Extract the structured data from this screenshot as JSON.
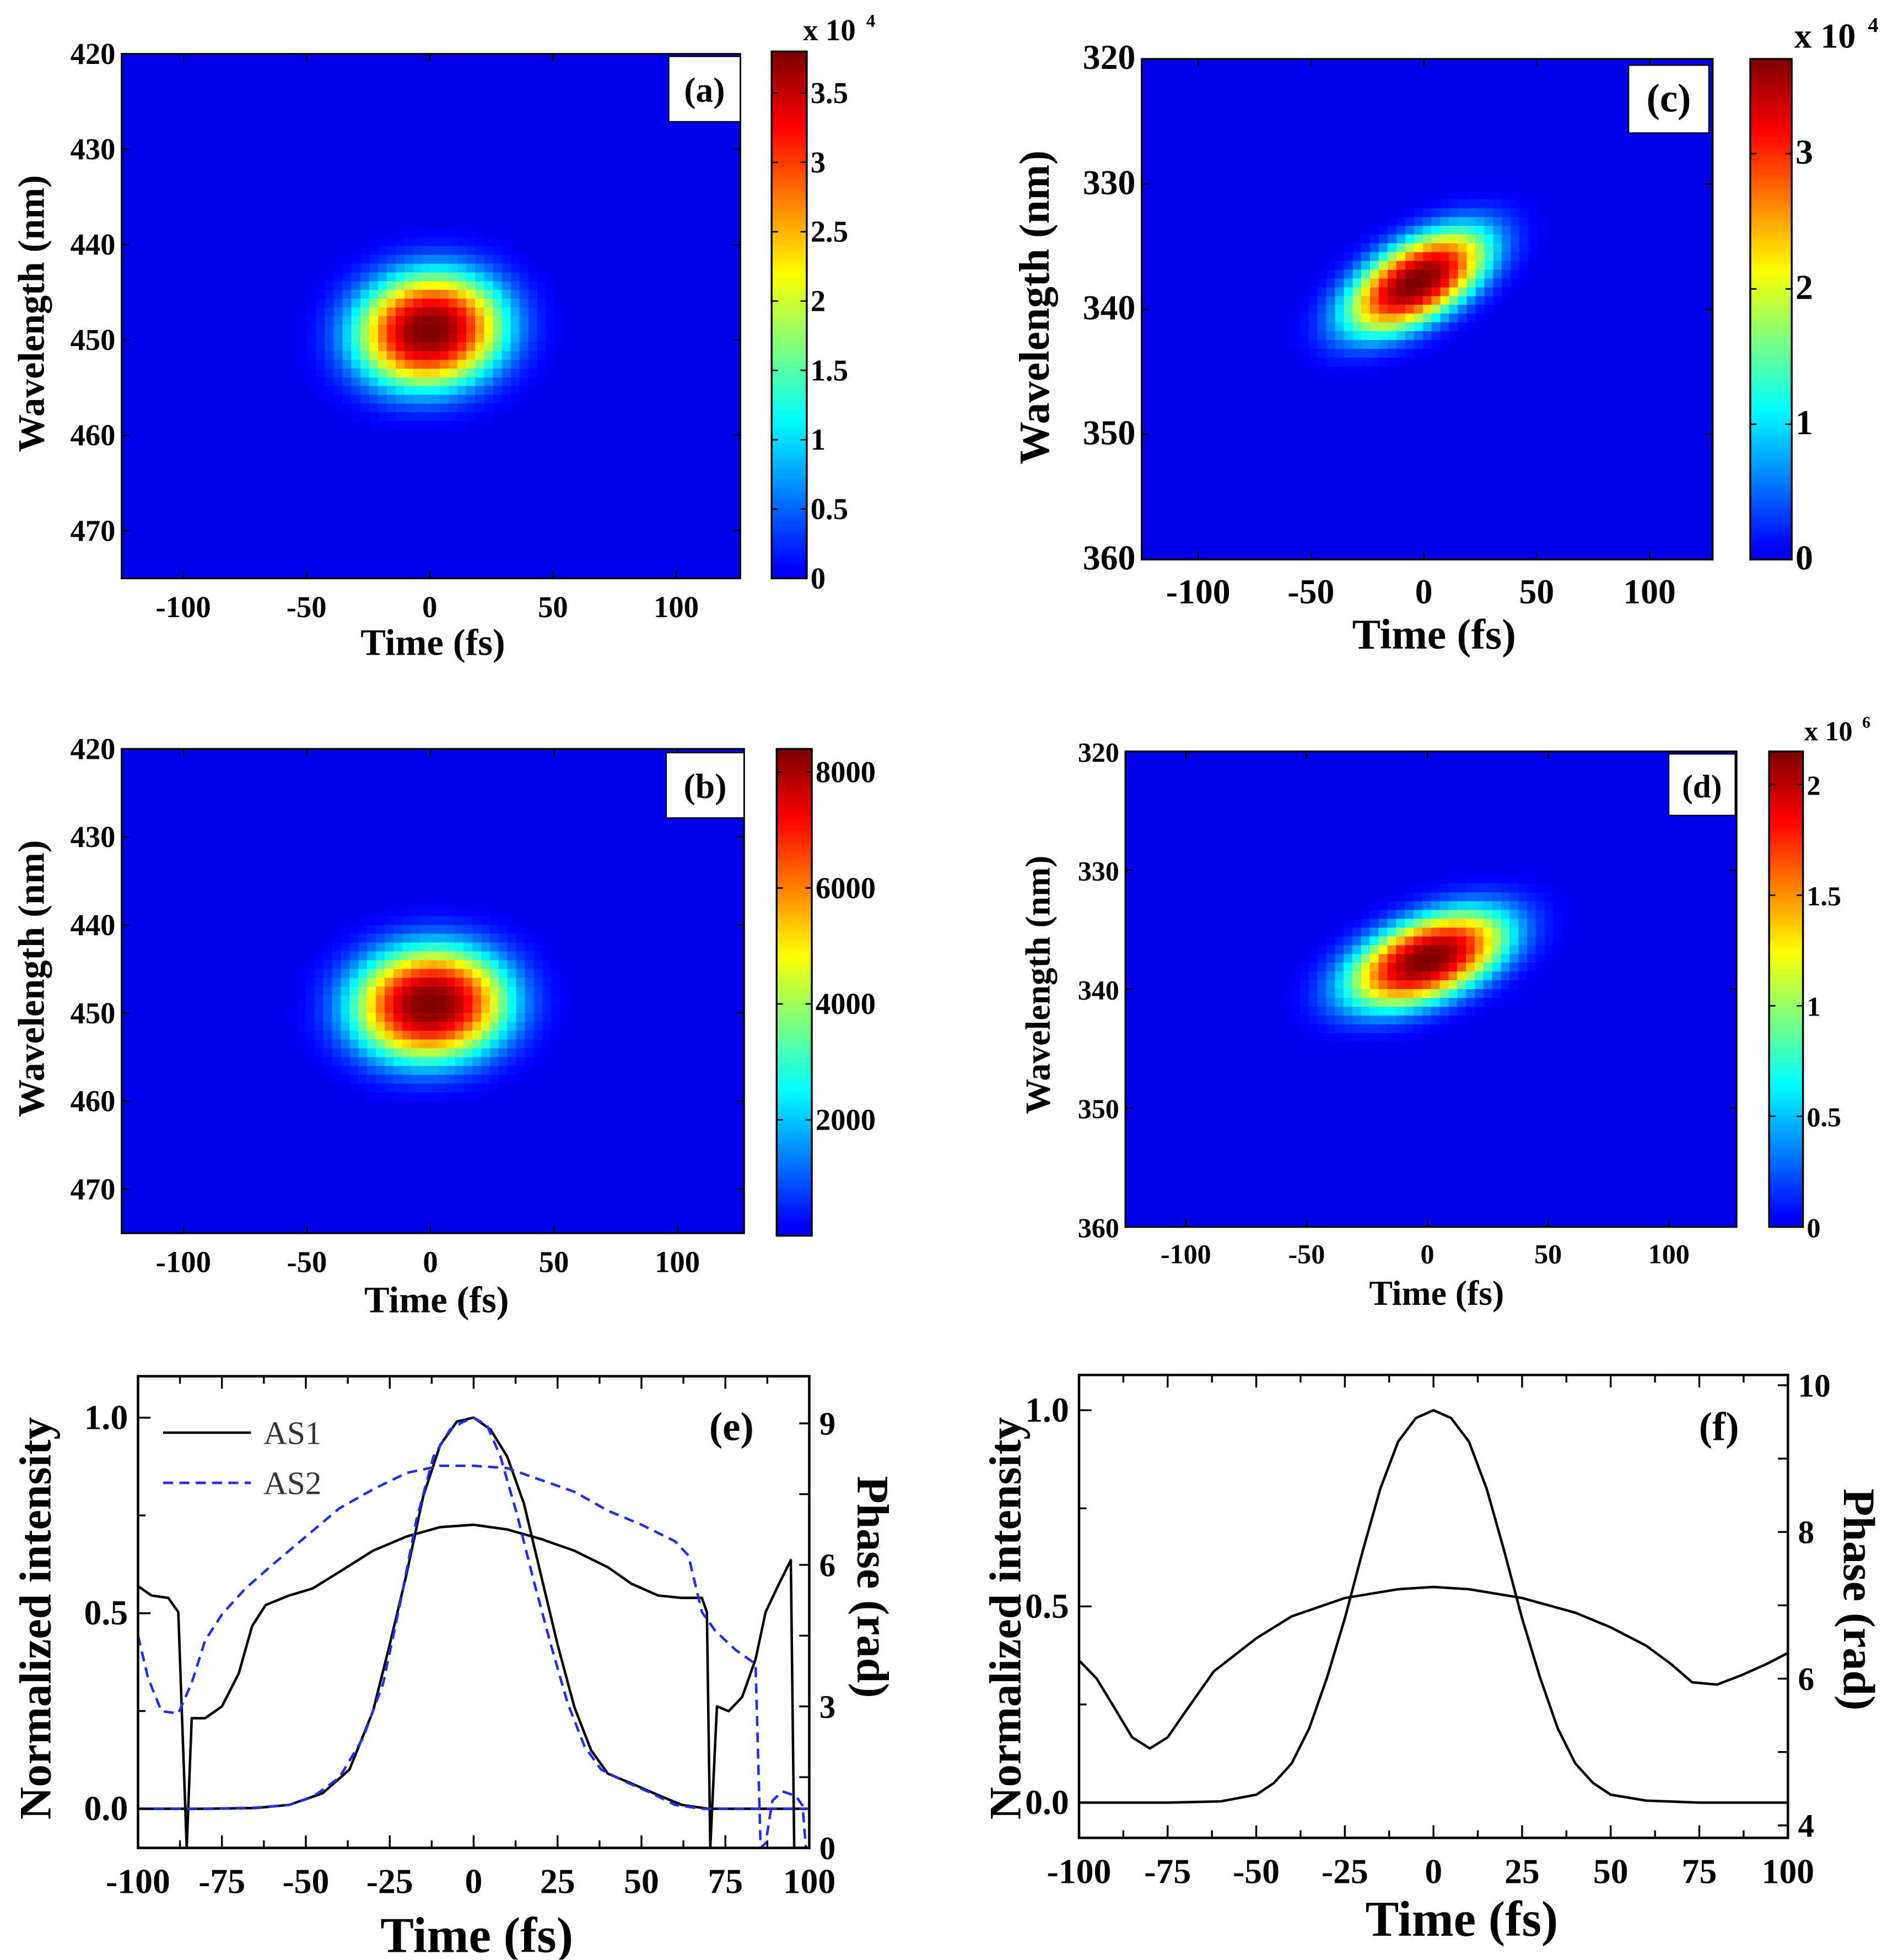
{
  "chart_data": [
    {
      "id": "a",
      "type": "heatmap",
      "panel_label": "(a)",
      "xlabel": "Time (fs)",
      "ylabel": "Wavelength (nm)",
      "xlim": [
        -125,
        126
      ],
      "ylim": [
        420,
        475
      ],
      "xticks": [
        "-100",
        "-50",
        "0",
        "50",
        "100"
      ],
      "xtick_values": [
        -100,
        -50,
        0,
        50,
        100
      ],
      "yticks": [
        "420",
        "430",
        "440",
        "450",
        "460",
        "470"
      ],
      "ytick_values": [
        420,
        430,
        440,
        450,
        460,
        470
      ],
      "peak": {
        "time": 0,
        "wavelength": 449,
        "value": 38000
      },
      "width": {
        "time_sigma": 21,
        "wavelength_sigma": 4.2,
        "chirp_nm_per_fs": -0.015
      },
      "colorbar": {
        "min": 0,
        "max": 3.8,
        "ticks": [
          "0",
          "0.5",
          "1",
          "1.5",
          "2",
          "2.5",
          "3",
          "3.5"
        ],
        "tick_values": [
          0,
          0.5,
          1,
          1.5,
          2,
          2.5,
          3,
          3.5
        ],
        "multiplier": "x 10",
        "exponent": "4"
      }
    },
    {
      "id": "b",
      "type": "heatmap",
      "panel_label": "(b)",
      "xlabel": "Time (fs)",
      "ylabel": "Wavelength (nm)",
      "xlim": [
        -125,
        127
      ],
      "ylim": [
        420,
        475
      ],
      "xticks": [
        "-100",
        "-50",
        "0",
        "50",
        "100"
      ],
      "xtick_values": [
        -100,
        -50,
        0,
        50,
        100
      ],
      "yticks": [
        "420",
        "430",
        "440",
        "450",
        "460",
        "470"
      ],
      "ytick_values": [
        420,
        430,
        440,
        450,
        460,
        470
      ],
      "peak": {
        "time": 0,
        "wavelength": 449,
        "value": 8400
      },
      "width": {
        "time_sigma": 22,
        "wavelength_sigma": 4.5,
        "chirp_nm_per_fs": -0.01
      },
      "colorbar": {
        "min": 0,
        "max": 8400,
        "ticks": [
          "2000",
          "4000",
          "6000",
          "8000"
        ],
        "tick_values": [
          2000,
          4000,
          6000,
          8000
        ]
      }
    },
    {
      "id": "c",
      "type": "heatmap",
      "panel_label": "(c)",
      "xlabel": "Time (fs)",
      "ylabel": "Wavelength (nm)",
      "xlim": [
        -125,
        128
      ],
      "ylim": [
        320,
        360
      ],
      "xticks": [
        "-100",
        "-50",
        "0",
        "50",
        "100"
      ],
      "xtick_values": [
        -100,
        -50,
        0,
        50,
        100
      ],
      "yticks": [
        "320",
        "330",
        "340",
        "350",
        "360"
      ],
      "ytick_values": [
        320,
        330,
        340,
        350,
        360
      ],
      "peak": {
        "time": -3,
        "wavelength": 337.8,
        "value": 37000
      },
      "width": {
        "time_sigma": 22,
        "wavelength_sigma": 2.4,
        "chirp_nm_per_fs": -0.075
      },
      "colorbar": {
        "min": 0,
        "max": 3.7,
        "ticks": [
          "0",
          "1",
          "2",
          "3"
        ],
        "tick_values": [
          0,
          1,
          2,
          3
        ],
        "multiplier": "x 10",
        "exponent": "4"
      }
    },
    {
      "id": "d",
      "type": "heatmap",
      "panel_label": "(d)",
      "xlabel": "Time (fs)",
      "ylabel": "Wavelength (nm)",
      "xlim": [
        -125,
        128
      ],
      "ylim": [
        320,
        360
      ],
      "xticks": [
        "-100",
        "-50",
        "0",
        "50",
        "100"
      ],
      "xtick_values": [
        -100,
        -50,
        0,
        50,
        100
      ],
      "yticks": [
        "320",
        "330",
        "340",
        "350",
        "360"
      ],
      "ytick_values": [
        320,
        330,
        340,
        350,
        360
      ],
      "peak": {
        "time": 0,
        "wavelength": 337.5,
        "value": 2150000
      },
      "width": {
        "time_sigma": 23,
        "wavelength_sigma": 2.5,
        "chirp_nm_per_fs": -0.06
      },
      "colorbar": {
        "min": 0,
        "max": 2.15,
        "ticks": [
          "0",
          "0.5",
          "1",
          "1.5",
          "2"
        ],
        "tick_values": [
          0,
          0.5,
          1,
          1.5,
          2
        ],
        "multiplier": "x 10",
        "exponent": "6"
      }
    },
    {
      "id": "e",
      "type": "line",
      "panel_label": "(e)",
      "xlabel": "Time (fs)",
      "ylabel": "Normalized intensity",
      "y2label": "Phase (rad)",
      "xlim": [
        -100,
        100
      ],
      "ylim": [
        -0.1,
        1.106
      ],
      "y2lim": [
        0,
        10
      ],
      "xticks": [
        "-100",
        "-75",
        "-50",
        "-25",
        "0",
        "25",
        "50",
        "75",
        "100"
      ],
      "xtick_values": [
        -100,
        -75,
        -50,
        -25,
        0,
        25,
        50,
        75,
        100
      ],
      "yticks": [
        "0.0",
        "0.5",
        "1.0"
      ],
      "ytick_values": [
        0,
        0.5,
        1.0
      ],
      "y2ticks": [
        "0",
        "3",
        "6",
        "9"
      ],
      "y2tick_values": [
        0,
        3,
        6,
        9
      ],
      "legend": {
        "placement": "top-left",
        "entries": [
          "AS1",
          "AS2"
        ]
      },
      "series": [
        {
          "name": "AS1",
          "quantity": "intensity",
          "axis": "left",
          "color": "#000000",
          "dash": "solid",
          "points": [
            [
              -100,
              0
            ],
            [
              -80,
              0
            ],
            [
              -65,
              0.002
            ],
            [
              -55,
              0.01
            ],
            [
              -45,
              0.04
            ],
            [
              -37,
              0.1
            ],
            [
              -30,
              0.25
            ],
            [
              -25,
              0.42
            ],
            [
              -20,
              0.6
            ],
            [
              -15,
              0.8
            ],
            [
              -10,
              0.93
            ],
            [
              -5,
              0.99
            ],
            [
              0,
              1.0
            ],
            [
              5,
              0.97
            ],
            [
              10,
              0.9
            ],
            [
              15,
              0.78
            ],
            [
              20,
              0.6
            ],
            [
              25,
              0.42
            ],
            [
              30,
              0.26
            ],
            [
              35,
              0.15
            ],
            [
              40,
              0.09
            ],
            [
              47,
              0.065
            ],
            [
              55,
              0.035
            ],
            [
              62,
              0.01
            ],
            [
              70,
              0
            ],
            [
              100,
              0
            ]
          ]
        },
        {
          "name": "AS1",
          "quantity": "phase",
          "axis": "right",
          "color": "#000000",
          "dash": "solid",
          "points": [
            [
              -100,
              5.55
            ],
            [
              -96,
              5.35
            ],
            [
              -91,
              5.3
            ],
            [
              -88,
              5.0
            ],
            [
              -85.5,
              0
            ],
            [
              -84,
              2.75
            ],
            [
              -80,
              2.75
            ],
            [
              -75,
              3.0
            ],
            [
              -70,
              3.7
            ],
            [
              -66,
              4.7
            ],
            [
              -62,
              5.15
            ],
            [
              -55,
              5.35
            ],
            [
              -48,
              5.5
            ],
            [
              -40,
              5.85
            ],
            [
              -30,
              6.3
            ],
            [
              -20,
              6.6
            ],
            [
              -10,
              6.8
            ],
            [
              0,
              6.85
            ],
            [
              10,
              6.75
            ],
            [
              20,
              6.55
            ],
            [
              30,
              6.3
            ],
            [
              40,
              5.95
            ],
            [
              47,
              5.6
            ],
            [
              55,
              5.35
            ],
            [
              62,
              5.3
            ],
            [
              68,
              5.3
            ],
            [
              69.5,
              5.0
            ],
            [
              70.5,
              0
            ],
            [
              72.5,
              3.0
            ],
            [
              76,
              2.9
            ],
            [
              80,
              3.2
            ],
            [
              84,
              4.0
            ],
            [
              87,
              5.0
            ],
            [
              91,
              5.6
            ],
            [
              94.5,
              6.1
            ],
            [
              95.5,
              0
            ],
            [
              100,
              0
            ]
          ]
        },
        {
          "name": "AS2",
          "quantity": "intensity",
          "axis": "left",
          "color": "#1f2ff0",
          "dash": "dashed",
          "points": [
            [
              -100,
              0
            ],
            [
              -80,
              0
            ],
            [
              -65,
              0.003
            ],
            [
              -55,
              0.01
            ],
            [
              -48,
              0.03
            ],
            [
              -40,
              0.08
            ],
            [
              -33,
              0.18
            ],
            [
              -27,
              0.32
            ],
            [
              -22,
              0.52
            ],
            [
              -17,
              0.74
            ],
            [
              -12,
              0.9
            ],
            [
              -7,
              0.97
            ],
            [
              -3,
              0.99
            ],
            [
              0,
              1.0
            ],
            [
              4,
              0.98
            ],
            [
              8,
              0.9
            ],
            [
              13,
              0.75
            ],
            [
              18,
              0.58
            ],
            [
              23,
              0.42
            ],
            [
              28,
              0.27
            ],
            [
              33,
              0.16
            ],
            [
              38,
              0.1
            ],
            [
              45,
              0.07
            ],
            [
              53,
              0.04
            ],
            [
              60,
              0.01
            ],
            [
              68,
              0
            ],
            [
              100,
              0
            ]
          ]
        },
        {
          "name": "AS2",
          "quantity": "phase",
          "axis": "right",
          "color": "#1f2ff0",
          "dash": "dashed",
          "points": [
            [
              -100,
              4.5
            ],
            [
              -97,
              3.6
            ],
            [
              -93,
              2.9
            ],
            [
              -88,
              2.85
            ],
            [
              -84,
              3.5
            ],
            [
              -80,
              4.4
            ],
            [
              -75,
              4.95
            ],
            [
              -68,
              5.5
            ],
            [
              -60,
              6.0
            ],
            [
              -50,
              6.6
            ],
            [
              -40,
              7.2
            ],
            [
              -30,
              7.6
            ],
            [
              -20,
              7.95
            ],
            [
              -10,
              8.1
            ],
            [
              0,
              8.1
            ],
            [
              10,
              8.05
            ],
            [
              20,
              7.8
            ],
            [
              30,
              7.55
            ],
            [
              40,
              7.15
            ],
            [
              50,
              6.85
            ],
            [
              60,
              6.5
            ],
            [
              64,
              6.2
            ],
            [
              66,
              5.6
            ],
            [
              68,
              5.0
            ],
            [
              72,
              4.6
            ],
            [
              78,
              4.2
            ],
            [
              84,
              3.9
            ],
            [
              85.5,
              0
            ],
            [
              87,
              0.1
            ],
            [
              89,
              1.0
            ],
            [
              92,
              1.2
            ],
            [
              96,
              1.1
            ],
            [
              98,
              0.9
            ],
            [
              99,
              0
            ],
            [
              100,
              0
            ]
          ]
        }
      ]
    },
    {
      "id": "f",
      "type": "line",
      "panel_label": "(f)",
      "xlabel": "Time (fs)",
      "ylabel": "Normalized intensity",
      "y2label": "Phase (rad)",
      "xlim": [
        -100,
        100
      ],
      "ylim": [
        -0.09,
        1.09
      ],
      "y2lim": [
        3.83,
        10.14
      ],
      "xticks": [
        "-100",
        "-75",
        "-50",
        "-25",
        "0",
        "25",
        "50",
        "75",
        "100"
      ],
      "xtick_values": [
        -100,
        -75,
        -50,
        -25,
        0,
        25,
        50,
        75,
        100
      ],
      "yticks": [
        "0.0",
        "0.5",
        "1.0"
      ],
      "ytick_values": [
        0,
        0.5,
        1.0
      ],
      "y2ticks": [
        "4",
        "6",
        "8",
        "10"
      ],
      "y2tick_values": [
        4,
        6,
        8,
        10
      ],
      "series": [
        {
          "name": "intensity",
          "quantity": "intensity",
          "axis": "left",
          "color": "#000000",
          "dash": "solid",
          "points": [
            [
              -100,
              0
            ],
            [
              -75,
              0
            ],
            [
              -60,
              0.003
            ],
            [
              -50,
              0.02
            ],
            [
              -45,
              0.05
            ],
            [
              -40,
              0.1
            ],
            [
              -35,
              0.19
            ],
            [
              -30,
              0.32
            ],
            [
              -25,
              0.47
            ],
            [
              -20,
              0.64
            ],
            [
              -15,
              0.8
            ],
            [
              -10,
              0.92
            ],
            [
              -5,
              0.98
            ],
            [
              0,
              1.0
            ],
            [
              5,
              0.98
            ],
            [
              10,
              0.92
            ],
            [
              15,
              0.8
            ],
            [
              20,
              0.64
            ],
            [
              25,
              0.47
            ],
            [
              30,
              0.32
            ],
            [
              35,
              0.19
            ],
            [
              40,
              0.1
            ],
            [
              45,
              0.05
            ],
            [
              50,
              0.02
            ],
            [
              60,
              0.005
            ],
            [
              75,
              0
            ],
            [
              100,
              0
            ]
          ]
        },
        {
          "name": "phase",
          "quantity": "phase",
          "axis": "right",
          "color": "#000000",
          "dash": "solid",
          "points": [
            [
              -100,
              6.25
            ],
            [
              -95,
              6.0
            ],
            [
              -90,
              5.6
            ],
            [
              -85,
              5.2
            ],
            [
              -80,
              5.05
            ],
            [
              -75,
              5.2
            ],
            [
              -70,
              5.55
            ],
            [
              -62,
              6.1
            ],
            [
              -50,
              6.55
            ],
            [
              -40,
              6.85
            ],
            [
              -25,
              7.1
            ],
            [
              -10,
              7.22
            ],
            [
              0,
              7.25
            ],
            [
              10,
              7.22
            ],
            [
              25,
              7.1
            ],
            [
              40,
              6.9
            ],
            [
              50,
              6.7
            ],
            [
              60,
              6.45
            ],
            [
              67,
              6.2
            ],
            [
              73,
              5.95
            ],
            [
              80,
              5.92
            ],
            [
              87,
              6.05
            ],
            [
              94,
              6.2
            ],
            [
              100,
              6.35
            ]
          ]
        }
      ]
    }
  ]
}
